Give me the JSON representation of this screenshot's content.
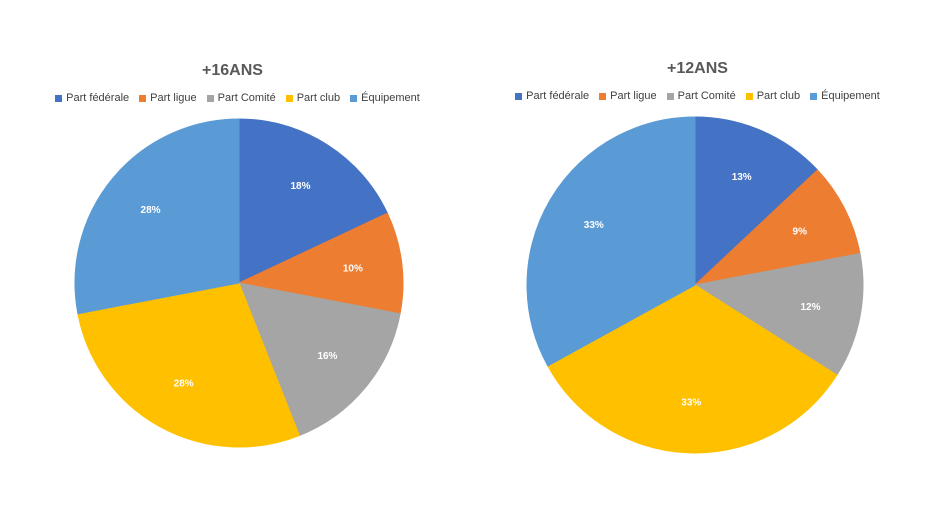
{
  "chart_data": [
    {
      "type": "pie",
      "title": "+16ANS",
      "categories": [
        "Part fédérale",
        "Part ligue",
        "Part Comité",
        "Part club",
        "Équipement"
      ],
      "values": [
        18,
        10,
        16,
        28,
        28
      ],
      "labels": [
        "18%",
        "10%",
        "16%",
        "28%",
        "28%"
      ],
      "colors": [
        "#4472C4",
        "#ED7D31",
        "#A5A5A5",
        "#FFC000",
        "#5B9BD5"
      ],
      "legend": "top"
    },
    {
      "type": "pie",
      "title": "+12ANS",
      "categories": [
        "Part fédérale",
        "Part ligue",
        "Part Comité",
        "Part club",
        "Équipement"
      ],
      "values": [
        13,
        9,
        12,
        33,
        33
      ],
      "labels": [
        "13%",
        "9%",
        "12%",
        "33%",
        "33%"
      ],
      "colors": [
        "#4472C4",
        "#ED7D31",
        "#A5A5A5",
        "#FFC000",
        "#5B9BD5"
      ],
      "legend": "top"
    }
  ]
}
